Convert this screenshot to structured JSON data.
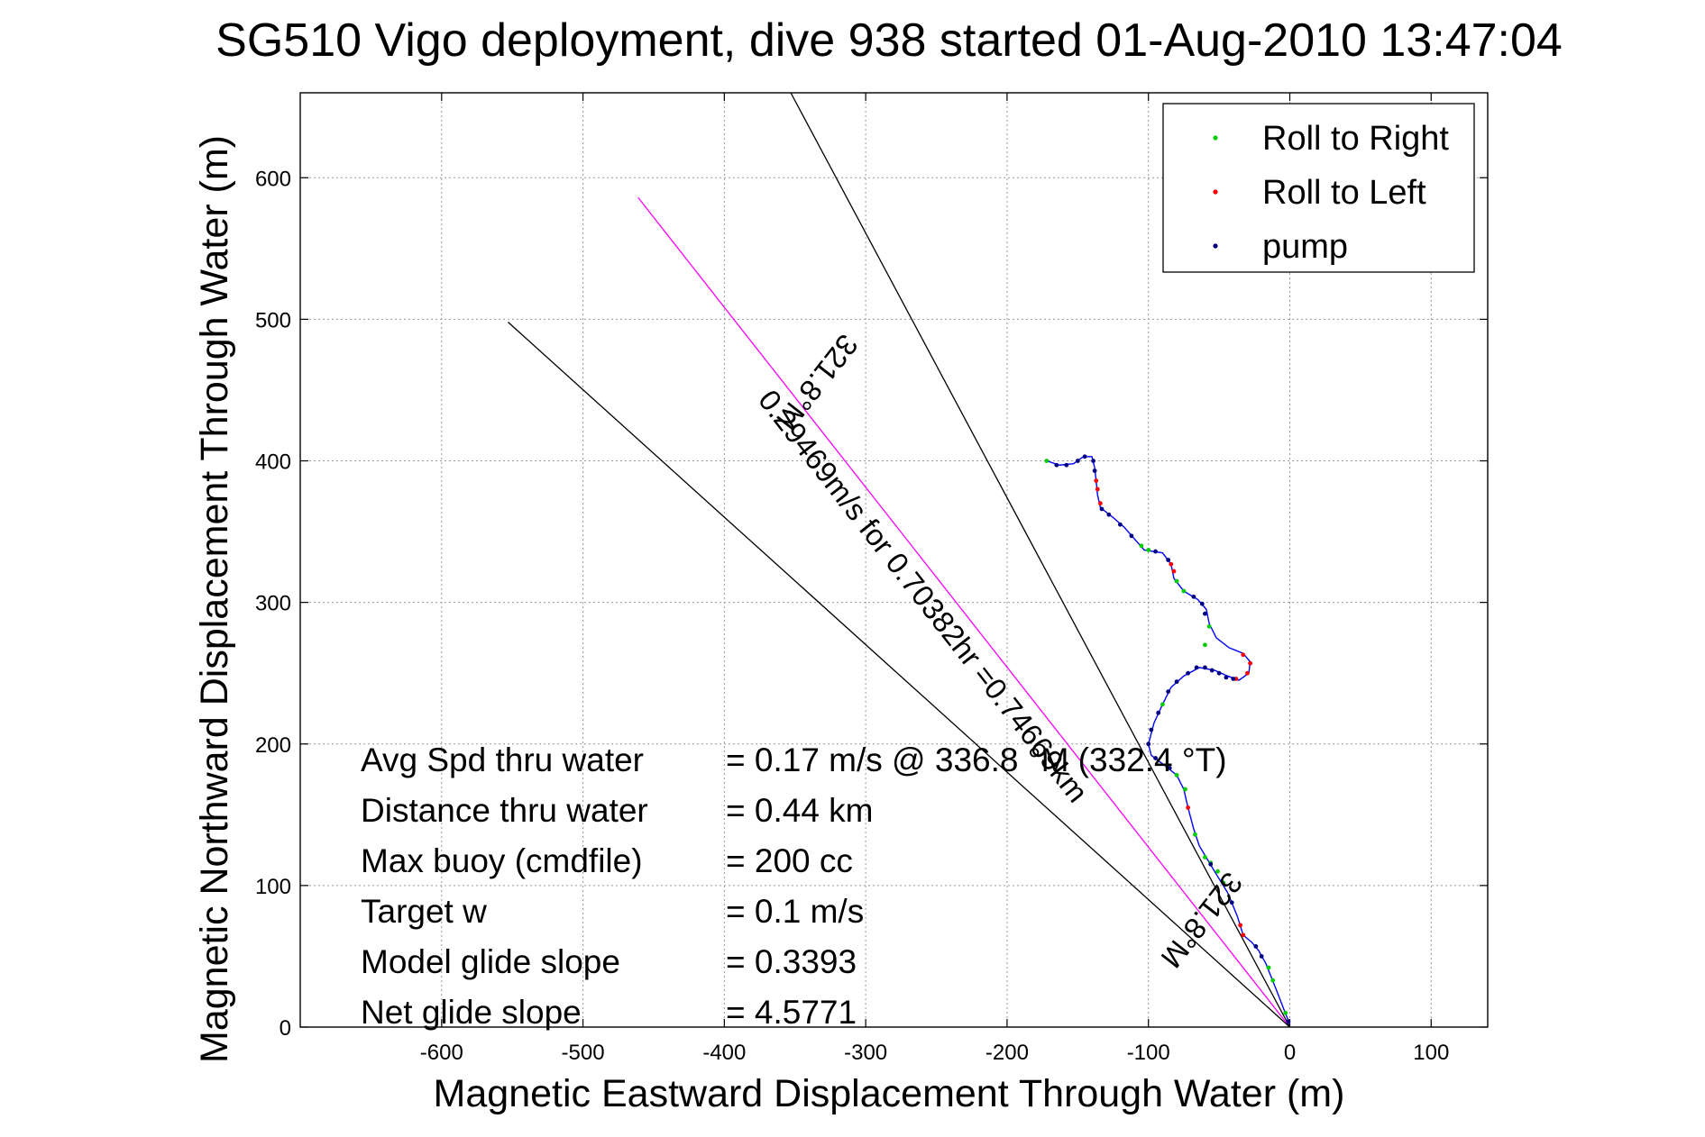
{
  "chart_data": {
    "type": "line",
    "title": "SG510 Vigo deployment, dive 938 started 01-Aug-2010 13:47:04",
    "xlabel": "Magnetic Eastward Displacement Through Water (m)",
    "ylabel": "Magnetic Northward Displacement Through Water (m)",
    "xlim": [
      -700,
      140
    ],
    "ylim": [
      0,
      660
    ],
    "xticks": [
      -600,
      -500,
      -400,
      -300,
      -200,
      -100,
      0,
      100
    ],
    "yticks": [
      0,
      100,
      200,
      300,
      400,
      500,
      600
    ],
    "grid": true,
    "legend": {
      "position": "top-right",
      "entries": [
        {
          "label": "Roll to Right",
          "color": "#00cc00"
        },
        {
          "label": "Roll to Left",
          "color": "#ff0000"
        },
        {
          "label": "pump",
          "color": "#000080"
        }
      ]
    },
    "track": {
      "color": "#0000ff",
      "points": [
        [
          0,
          2
        ],
        [
          -4,
          12
        ],
        [
          -9,
          25
        ],
        [
          -13,
          35
        ],
        [
          -17,
          45
        ],
        [
          -22,
          54
        ],
        [
          -27,
          60
        ],
        [
          -33,
          65
        ],
        [
          -37,
          78
        ],
        [
          -44,
          95
        ],
        [
          -52,
          108
        ],
        [
          -58,
          118
        ],
        [
          -64,
          128
        ],
        [
          -68,
          140
        ],
        [
          -72,
          155
        ],
        [
          -75,
          168
        ],
        [
          -80,
          178
        ],
        [
          -90,
          186
        ],
        [
          -98,
          192
        ],
        [
          -100,
          200
        ],
        [
          -96,
          215
        ],
        [
          -90,
          228
        ],
        [
          -84,
          240
        ],
        [
          -75,
          248
        ],
        [
          -64,
          254
        ],
        [
          -53,
          252
        ],
        [
          -44,
          248
        ],
        [
          -36,
          245
        ],
        [
          -29,
          250
        ],
        [
          -28,
          258
        ],
        [
          -33,
          264
        ],
        [
          -43,
          268
        ],
        [
          -52,
          275
        ],
        [
          -57,
          285
        ],
        [
          -59,
          295
        ],
        [
          -65,
          302
        ],
        [
          -75,
          308
        ],
        [
          -82,
          317
        ],
        [
          -84,
          327
        ],
        [
          -90,
          335
        ],
        [
          -103,
          337
        ],
        [
          -110,
          345
        ],
        [
          -117,
          353
        ],
        [
          -125,
          360
        ],
        [
          -134,
          367
        ],
        [
          -136,
          376
        ],
        [
          -137,
          386
        ],
        [
          -138,
          395
        ],
        [
          -140,
          403
        ],
        [
          -146,
          403
        ],
        [
          -153,
          398
        ],
        [
          -163,
          397
        ],
        [
          -172,
          400
        ]
      ],
      "roll_right": [
        [
          -3,
          10
        ],
        [
          -12,
          33
        ],
        [
          -15,
          42
        ],
        [
          -56,
          116
        ],
        [
          -60,
          120
        ],
        [
          -67,
          136
        ],
        [
          -74,
          168
        ],
        [
          -80,
          178
        ],
        [
          -51,
          110
        ],
        [
          -47,
          102
        ],
        [
          -90,
          228
        ],
        [
          -60,
          270
        ],
        [
          -57,
          283
        ],
        [
          -75,
          308
        ],
        [
          -80,
          315
        ],
        [
          -100,
          337
        ],
        [
          -105,
          340
        ],
        [
          -172,
          400
        ]
      ],
      "roll_left": [
        [
          -33,
          65
        ],
        [
          -35,
          72
        ],
        [
          -72,
          155
        ],
        [
          -30,
          250
        ],
        [
          -28,
          257
        ],
        [
          -33,
          263
        ],
        [
          -38,
          246
        ],
        [
          -84,
          327
        ],
        [
          -82,
          322
        ],
        [
          -134,
          370
        ],
        [
          -136,
          380
        ],
        [
          -137,
          386
        ]
      ],
      "pump": [
        [
          -1,
          4
        ],
        [
          -20,
          50
        ],
        [
          -24,
          57
        ],
        [
          -41,
          88
        ],
        [
          -56,
          115
        ],
        [
          -85,
          183
        ],
        [
          -95,
          190
        ],
        [
          -100,
          200
        ],
        [
          -98,
          210
        ],
        [
          -93,
          222
        ],
        [
          -86,
          237
        ],
        [
          -80,
          244
        ],
        [
          -72,
          250
        ],
        [
          -66,
          254
        ],
        [
          -60,
          254
        ],
        [
          -55,
          252
        ],
        [
          -50,
          250
        ],
        [
          -45,
          247
        ],
        [
          -40,
          246
        ],
        [
          -60,
          292
        ],
        [
          -62,
          299
        ],
        [
          -68,
          304
        ],
        [
          -86,
          330
        ],
        [
          -95,
          336
        ],
        [
          -112,
          347
        ],
        [
          -120,
          355
        ],
        [
          -128,
          362
        ],
        [
          -133,
          366
        ],
        [
          -138,
          393
        ],
        [
          -139,
          400
        ],
        [
          -145,
          403
        ],
        [
          -150,
          400
        ],
        [
          -158,
          397
        ],
        [
          -165,
          397
        ]
      ]
    },
    "reference_lines": [
      {
        "name": "heading",
        "color": "#ff00ff",
        "x": [
          0,
          -461
        ],
        "y": [
          0,
          586
        ]
      },
      {
        "name": "bound",
        "color": "#000000",
        "x": [
          0,
          -553
        ],
        "y": [
          0,
          498
        ]
      },
      {
        "name": "bound",
        "color": "#000000",
        "x": [
          0,
          -353
        ],
        "y": [
          0,
          660
        ]
      }
    ],
    "line_labels": [
      {
        "text": "321.8°M",
        "x": -340,
        "y": 460,
        "angle": 128
      },
      {
        "text": "0.29469m/s for 0.70382hr =0.74669km",
        "x": -265,
        "y": 300,
        "angle": 52
      },
      {
        "text": "321.8°M",
        "x": -68,
        "y": 80,
        "angle": 128
      }
    ],
    "annotations": [
      {
        "label": "Avg Spd thru water",
        "value": "=  0.17 m/s @ 336.8 °M (332.4 °T)"
      },
      {
        "label": "Distance thru water",
        "value": "=  0.44 km"
      },
      {
        "label": "Max buoy (cmdfile)",
        "value": "= 200 cc"
      },
      {
        "label": "Target w",
        "value": "= 0.1 m/s"
      },
      {
        "label": "Model glide slope",
        "value": "= 0.3393"
      },
      {
        "label": "Net glide slope",
        "value": "= 4.5771"
      }
    ]
  }
}
